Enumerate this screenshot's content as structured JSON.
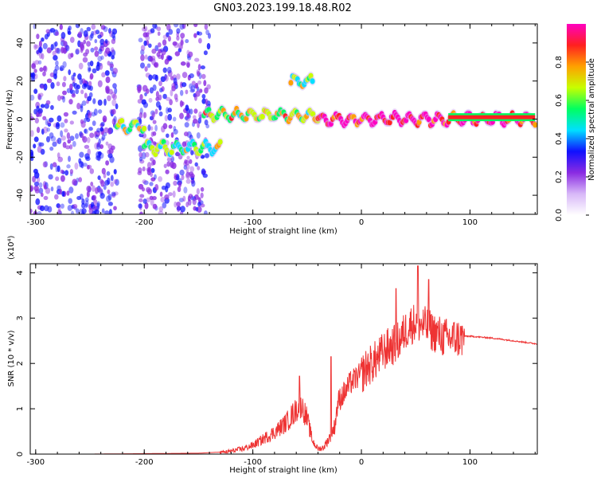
{
  "title": "GN03.2023.199.18.48.R02",
  "colors": {
    "snr_line": "#ee3333",
    "spectral_blob_core": "#ff3030",
    "spectral_scatter": "#7a2bd6"
  },
  "chart_data": [
    {
      "type": "heatmap",
      "name": "spectrogram",
      "xlabel": "Height of straight line (km)",
      "ylabel": "Frequency (Hz)",
      "xlim": [
        -305,
        162
      ],
      "ylim": [
        -50,
        50
      ],
      "x_ticks": [
        -300,
        -200,
        -100,
        0,
        100
      ],
      "y_ticks": [
        -40,
        -20,
        0,
        20,
        40
      ],
      "colorbar": {
        "label": "Normalized spectral amplitude",
        "range": [
          0,
          1
        ],
        "ticks": [
          "0.0",
          "0.2",
          "0.4",
          "0.6",
          "0.8"
        ],
        "colormap": [
          "#ffffff",
          "#d8b8f8",
          "#8a2be2",
          "#1010ff",
          "#00e0ff",
          "#00ff60",
          "#c8ff00",
          "#ffa000",
          "#ff2020",
          "#ff00c0"
        ]
      },
      "bands": [
        {
          "x_start": -305,
          "x_end": -225,
          "freq_center": 0,
          "amplitude": 0.15,
          "kind": "noise"
        },
        {
          "x_start": -205,
          "x_end": -140,
          "freq_center": 0,
          "amplitude": 0.1,
          "kind": "noise"
        },
        {
          "x_start": -225,
          "x_end": -200,
          "freq_center": -4,
          "amplitude": 0.55,
          "kind": "signal"
        },
        {
          "x_start": -200,
          "x_end": -130,
          "freq_center": -15,
          "amplitude": 0.5,
          "kind": "signal"
        },
        {
          "x_start": -145,
          "x_end": -40,
          "freq_center": 2,
          "amplitude": 0.6,
          "kind": "signal"
        },
        {
          "x_start": -65,
          "x_end": -45,
          "freq_center": 20,
          "amplitude": 0.5,
          "kind": "signal"
        },
        {
          "x_start": -40,
          "x_end": 160,
          "freq_center": 0,
          "amplitude": 0.9,
          "kind": "signal"
        }
      ]
    },
    {
      "type": "line",
      "name": "snr",
      "xlabel": "Height of straight line (km)",
      "ylabel": "SNR (10 * v/v)",
      "y_multiplier": "(x10⁴)",
      "xlim": [
        -305,
        162
      ],
      "ylim": [
        0,
        4.2
      ],
      "x_ticks": [
        -300,
        -200,
        -100,
        0,
        100
      ],
      "y_ticks": [
        0,
        1,
        2,
        3,
        4
      ],
      "series": [
        {
          "x": [
            -305,
            -250,
            -200,
            -150,
            -125,
            -110,
            -100,
            -90,
            -80,
            -70,
            -65,
            -60,
            -55,
            -50,
            -45,
            -40,
            -35,
            -30,
            -25,
            -22,
            -20,
            -15,
            -10,
            -5,
            0,
            5,
            10,
            15,
            20,
            25,
            30,
            35,
            40,
            45,
            50,
            55,
            60,
            65,
            70,
            75,
            80,
            85,
            90,
            100,
            120,
            140,
            162
          ],
          "values": [
            0.0,
            0.0,
            0.01,
            0.02,
            0.05,
            0.12,
            0.2,
            0.35,
            0.5,
            0.7,
            0.85,
            1.0,
            1.1,
            0.8,
            0.3,
            0.12,
            0.15,
            0.35,
            0.6,
            1.1,
            1.25,
            1.4,
            1.6,
            1.7,
            1.8,
            1.95,
            2.05,
            2.15,
            2.3,
            2.4,
            2.45,
            2.55,
            2.75,
            2.9,
            2.95,
            2.9,
            2.85,
            2.75,
            2.7,
            2.62,
            2.6,
            2.6,
            2.6,
            2.6,
            2.56,
            2.5,
            2.43
          ],
          "peaks": [
            {
              "x": -57,
              "value": 1.72
            },
            {
              "x": -28,
              "value": 2.15
            },
            {
              "x": 32,
              "value": 3.65
            },
            {
              "x": 52,
              "value": 4.15
            },
            {
              "x": 62,
              "value": 3.85
            }
          ]
        }
      ]
    }
  ]
}
